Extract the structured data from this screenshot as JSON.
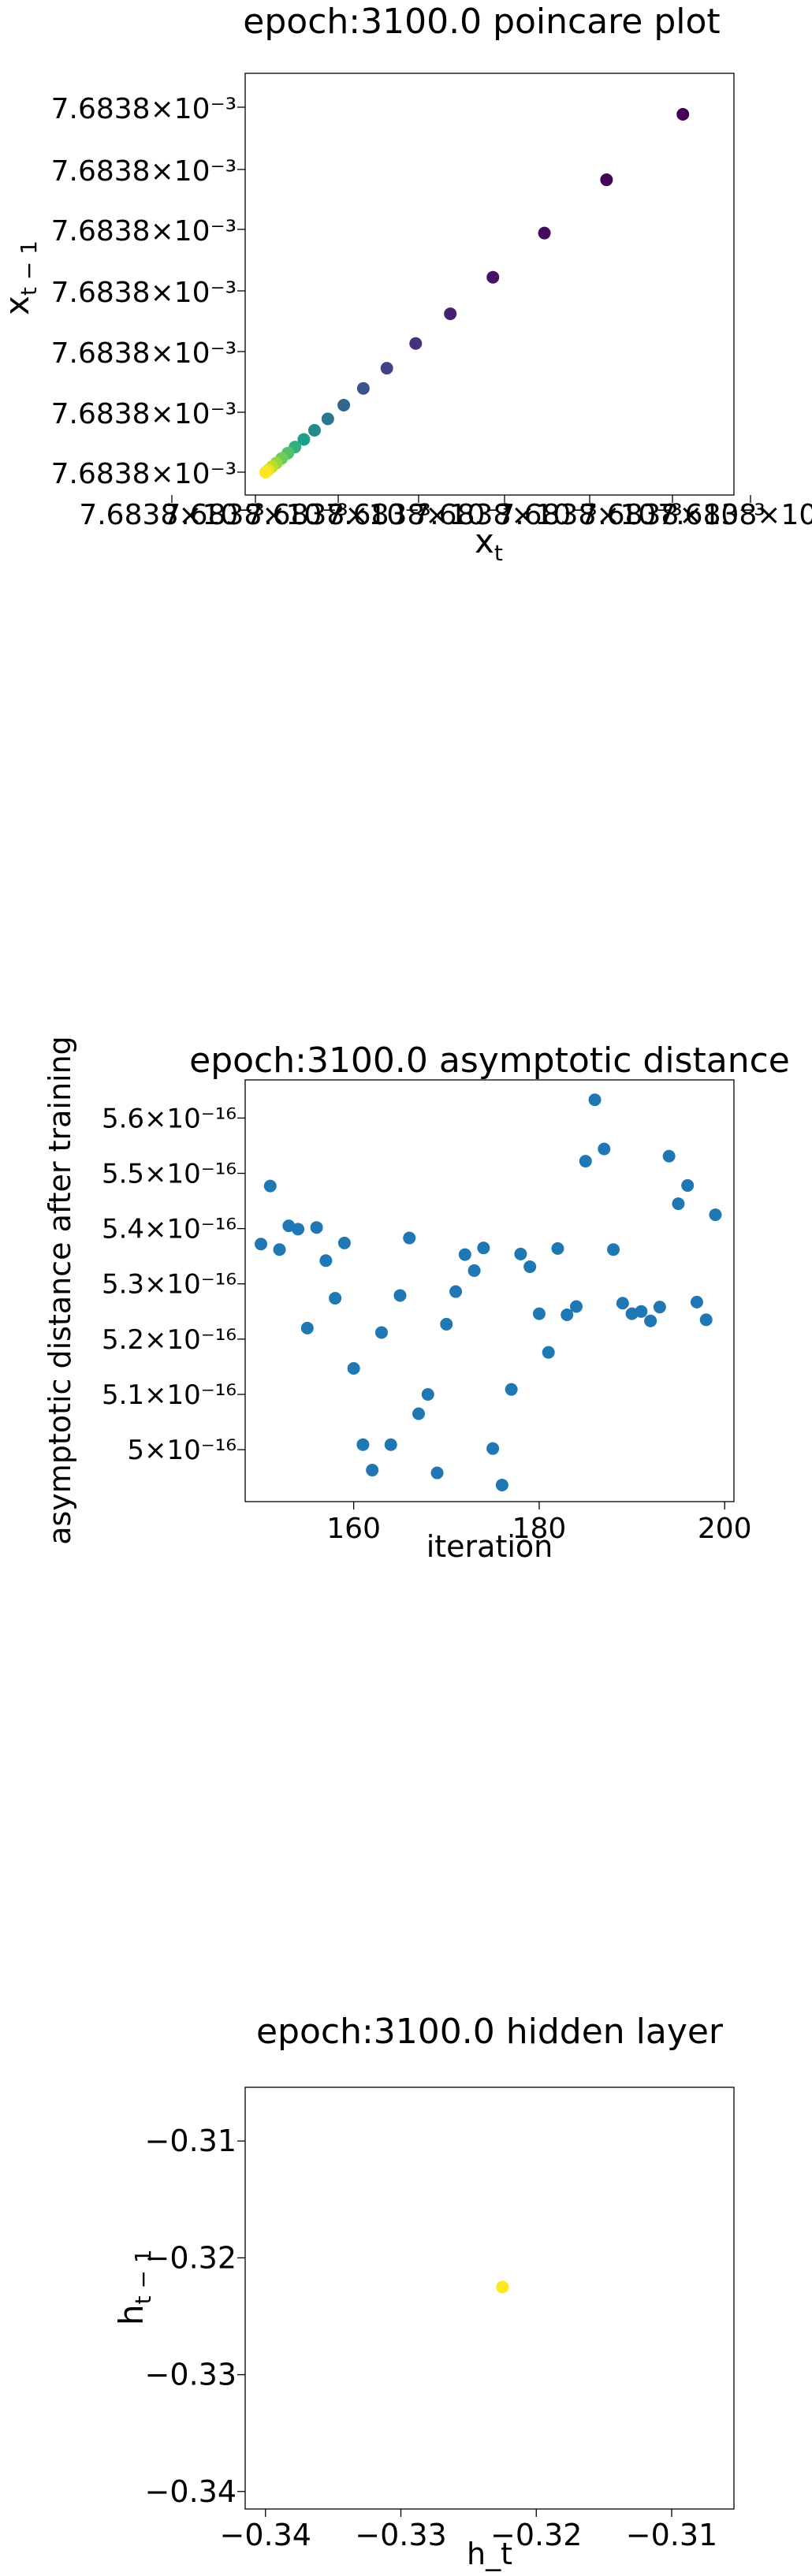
{
  "chart_data": [
    {
      "type": "scatter",
      "title": "epoch:3100.0 poincare plot",
      "xlabel": "x_t",
      "ylabel": "x_{t-1}",
      "x_tick_labels": [
        "7.6838×10⁻³",
        "7.6838×10⁻³",
        "7.6838×10⁻³",
        "7.6838×10⁻³",
        "7.6838×10⁻³",
        "7.6838×10⁻³",
        "7.6838×10⁻³",
        "7.6838×10⁻³"
      ],
      "y_tick_labels": [
        "7.6838×10⁻³",
        "7.6838×10⁻³",
        "7.6838×10⁻³",
        "7.6838×10⁻³",
        "7.6838×10⁻³",
        "7.6838×10⁻³",
        "7.6838×10⁻³"
      ],
      "xlim": [
        0,
        1
      ],
      "ylim": [
        0,
        1
      ],
      "colormap": "viridis",
      "grid": false,
      "points": [
        {
          "x": 0.0,
          "y": 0.0,
          "c": 1.0
        },
        {
          "x": 0.006,
          "y": 0.006,
          "c": 0.96
        },
        {
          "x": 0.014,
          "y": 0.014,
          "c": 0.9
        },
        {
          "x": 0.024,
          "y": 0.024,
          "c": 0.84
        },
        {
          "x": 0.036,
          "y": 0.036,
          "c": 0.78
        },
        {
          "x": 0.05,
          "y": 0.05,
          "c": 0.72
        },
        {
          "x": 0.066,
          "y": 0.066,
          "c": 0.64
        },
        {
          "x": 0.086,
          "y": 0.086,
          "c": 0.56
        },
        {
          "x": 0.11,
          "y": 0.11,
          "c": 0.48
        },
        {
          "x": 0.14,
          "y": 0.14,
          "c": 0.4
        },
        {
          "x": 0.176,
          "y": 0.176,
          "c": 0.33
        },
        {
          "x": 0.22,
          "y": 0.22,
          "c": 0.26
        },
        {
          "x": 0.273,
          "y": 0.273,
          "c": 0.2
        },
        {
          "x": 0.338,
          "y": 0.338,
          "c": 0.14
        },
        {
          "x": 0.416,
          "y": 0.416,
          "c": 0.09
        },
        {
          "x": 0.512,
          "y": 0.512,
          "c": 0.05
        },
        {
          "x": 0.628,
          "y": 0.628,
          "c": 0.03
        },
        {
          "x": 0.768,
          "y": 0.768,
          "c": 0.01
        },
        {
          "x": 0.94,
          "y": 0.94,
          "c": 0.0
        }
      ]
    },
    {
      "type": "scatter",
      "title": "epoch:3100.0 asymptotic distance",
      "xlabel": "iteration",
      "ylabel": "asymptotic distance after training",
      "xlim": [
        148.3,
        201.0
      ],
      "ylim": [
        4.906e-16,
        5.669e-16
      ],
      "x_ticks": [
        160,
        180,
        200
      ],
      "x_tick_labels": [
        "160",
        "180",
        "200"
      ],
      "y_ticks": [
        5e-16,
        5.1e-16,
        5.2e-16,
        5.3e-16,
        5.4e-16,
        5.5e-16,
        5.6e-16
      ],
      "y_tick_labels": [
        "5×10⁻¹⁶",
        "5.1×10⁻¹⁶",
        "5.2×10⁻¹⁶",
        "5.3×10⁻¹⁶",
        "5.4×10⁻¹⁶",
        "5.5×10⁻¹⁶",
        "5.6×10⁻¹⁶"
      ],
      "color": "#1f77b4",
      "grid": false,
      "x": [
        150,
        151,
        152,
        153,
        154,
        155,
        156,
        157,
        158,
        159,
        160,
        161,
        162,
        163,
        164,
        165,
        166,
        167,
        168,
        169,
        170,
        171,
        172,
        173,
        174,
        175,
        176,
        177,
        178,
        179,
        180,
        181,
        182,
        183,
        184,
        185,
        186,
        187,
        188,
        189,
        190,
        191,
        192,
        193,
        194,
        195,
        196,
        197,
        198,
        199
      ],
      "y": [
        5.372e-16,
        5.477e-16,
        5.362e-16,
        5.405e-16,
        5.399e-16,
        5.22e-16,
        5.402e-16,
        5.342e-16,
        5.274e-16,
        5.374e-16,
        5.147e-16,
        5.009e-16,
        4.963e-16,
        5.212e-16,
        5.009e-16,
        5.279e-16,
        5.383e-16,
        5.065e-16,
        5.1e-16,
        4.958e-16,
        5.227e-16,
        5.286e-16,
        5.353e-16,
        5.324e-16,
        5.365e-16,
        5.002e-16,
        4.936e-16,
        5.109e-16,
        5.354e-16,
        5.331e-16,
        5.246e-16,
        5.176e-16,
        5.364e-16,
        5.244e-16,
        5.259e-16,
        5.522e-16,
        5.633e-16,
        5.544e-16,
        5.362e-16,
        5.265e-16,
        5.246e-16,
        5.25e-16,
        5.233e-16,
        5.258e-16,
        5.531e-16,
        5.445e-16,
        5.478e-16,
        5.267e-16,
        5.235e-16,
        5.425e-16
      ]
    },
    {
      "type": "scatter",
      "title": "epoch:3100.0 hidden layer",
      "xlabel": "h_t",
      "ylabel": "h_{t-1}",
      "xlim": [
        -0.3415,
        -0.3054
      ],
      "ylim": [
        -0.3415,
        -0.3054
      ],
      "x_ticks": [
        -0.34,
        -0.33,
        -0.32,
        -0.31
      ],
      "x_tick_labels": [
        "−0.34",
        "−0.33",
        "−0.32",
        "−0.31"
      ],
      "y_ticks": [
        -0.34,
        -0.33,
        -0.32,
        -0.31
      ],
      "y_tick_labels": [
        "−0.34",
        "−0.33",
        "−0.32",
        "−0.31"
      ],
      "color": "#fde725",
      "grid": false,
      "x": [
        -0.3225
      ],
      "y": [
        -0.3225
      ]
    }
  ]
}
